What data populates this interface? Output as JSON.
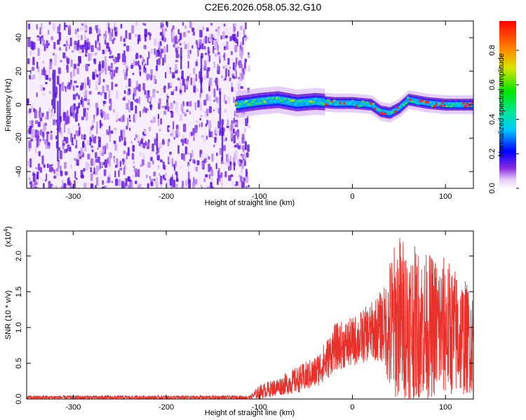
{
  "title": "C2E6.2026.058.05.32.G10",
  "chart_data": [
    {
      "type": "heatmap",
      "name": "spectrogram",
      "xlabel": "Height of straight line (km)",
      "ylabel": "Frequency (Hz)",
      "xlim": [
        -350,
        130
      ],
      "ylim": [
        -50,
        50
      ],
      "xticks": [
        -300,
        -200,
        -100,
        0,
        100
      ],
      "yticks": [
        -40,
        -20,
        0,
        20,
        40
      ],
      "noise_region_x": [
        -350,
        -115
      ],
      "signal_track": {
        "x": [
          -125,
          -100,
          -80,
          -60,
          -40,
          -20,
          0,
          20,
          30,
          40,
          50,
          60,
          80,
          100,
          130
        ],
        "freq": [
          0,
          2,
          3,
          1,
          2,
          1,
          1,
          0,
          -4,
          -5,
          -2,
          3,
          1,
          0,
          0
        ]
      },
      "colorbar": {
        "label": "Normalized spectral amplitude",
        "ticks": [
          0.0,
          0.2,
          0.4,
          0.6,
          0.8
        ],
        "tick_labels": [
          "0.0",
          "0.2",
          "0.4",
          "0.6",
          "0.8"
        ],
        "range": [
          0,
          0.97
        ]
      }
    },
    {
      "type": "line",
      "name": "snr",
      "xlabel": "Height of straight line (km)",
      "ylabel": "SNR (10 * v/v)",
      "y_multiplier": "(x10",
      "y_multiplier_exp": "4",
      "y_multiplier_close": ")",
      "xlim": [
        -350,
        130
      ],
      "ylim": [
        0,
        2.35
      ],
      "xticks": [
        -300,
        -200,
        -100,
        0,
        100
      ],
      "yticks": [
        0.0,
        0.5,
        1.0,
        1.5,
        2.0
      ],
      "ytick_labels": [
        "0.0",
        "0.5",
        "1.0",
        "1.5",
        "2.0"
      ],
      "color": "#e8312b",
      "envelope": {
        "x": [
          -350,
          -110,
          -100,
          -80,
          -60,
          -40,
          -25,
          -20,
          0,
          20,
          35,
          40,
          50,
          60,
          80,
          100,
          120,
          130
        ],
        "low": [
          0.0,
          0.0,
          0.0,
          0.05,
          0.08,
          0.15,
          0.3,
          0.4,
          0.45,
          0.55,
          0.5,
          0.0,
          0.0,
          0.0,
          0.0,
          0.05,
          0.05,
          0.1
        ],
        "high": [
          0.05,
          0.05,
          0.2,
          0.3,
          0.45,
          0.6,
          0.9,
          1.05,
          1.15,
          1.35,
          1.6,
          2.0,
          2.35,
          2.2,
          2.05,
          2.0,
          1.7,
          1.5
        ]
      }
    }
  ]
}
